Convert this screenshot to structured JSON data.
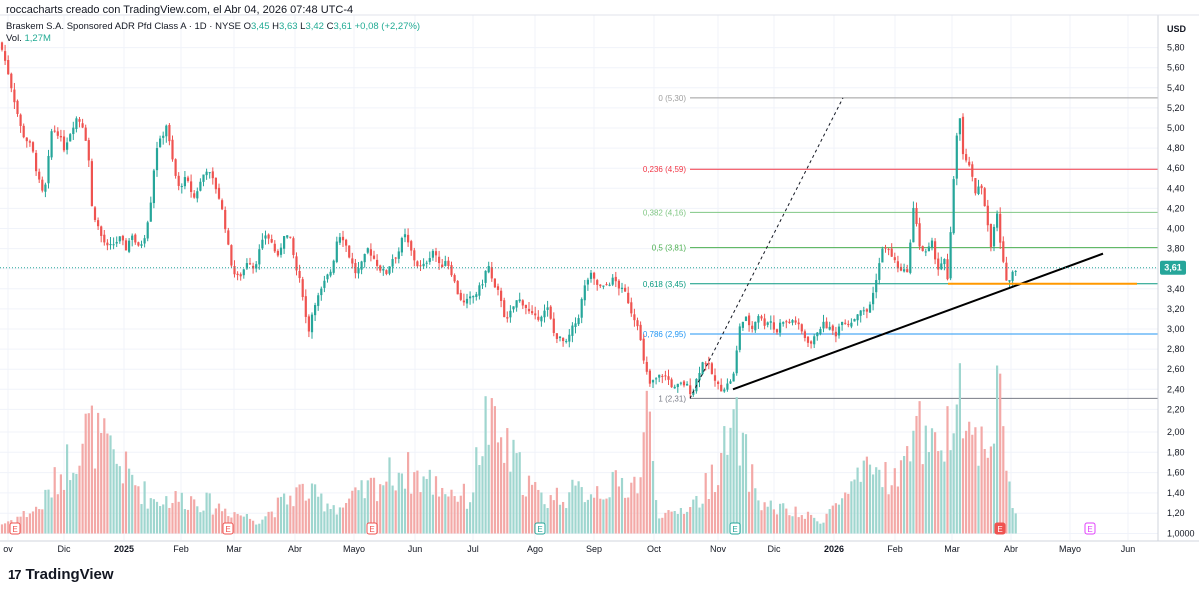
{
  "header": {
    "caption": "roccacharts creado con TradingView.com, el Abr 04, 2026 07:48 UTC-4"
  },
  "legend": {
    "symbol": "Braskem S.A. Sponsored ADR Pfd Class A · 1D · NYSE",
    "open_label": "O",
    "open": "3,45",
    "high_label": "H",
    "high": "3,63",
    "low_label": "L",
    "low": "3,42",
    "close_label": "C",
    "close": "3,61",
    "change": "+0,08 (+2,27%)",
    "vol_label": "Vol.",
    "vol": "1,27M"
  },
  "brand": {
    "name": "TradingView",
    "logo_text": "17"
  },
  "colors": {
    "up": "#26a69a",
    "down": "#ef5350",
    "up_vol": "#9fd6cf",
    "down_vol": "#f3a9a7",
    "axis_text": "#131722",
    "grid": "#f0f3fa"
  },
  "chart_data": {
    "type": "candlestick",
    "currency": "USD",
    "last_price": "3,61",
    "x_axis_labels": [
      "ov",
      "Dic",
      "2025",
      "Feb",
      "Mar",
      "Abr",
      "Mayo",
      "Jun",
      "Jul",
      "Ago",
      "Sep",
      "Oct",
      "Nov",
      "Dic",
      "2026",
      "Feb",
      "Mar",
      "Abr",
      "Mayo",
      "Jun"
    ],
    "y_ticks": [
      5.8,
      5.6,
      5.4,
      5.2,
      5.0,
      4.8,
      4.6,
      4.4,
      4.2,
      4.0,
      3.8,
      3.6,
      3.4,
      3.2,
      3.0,
      2.8,
      2.6,
      2.4,
      2.2,
      2.0,
      1.8,
      1.6,
      1.4,
      1.2,
      1.0
    ],
    "y_tick_labels": [
      "5,80",
      "5,60",
      "5,40",
      "5,20",
      "5,00",
      "4,80",
      "4,60",
      "4,40",
      "4,20",
      "4,00",
      "3,80",
      "3,60",
      "3,40",
      "3,20",
      "3,00",
      "2,80",
      "2,60",
      "2,40",
      "2,20",
      "2,00",
      "1,80",
      "1,60",
      "1,40",
      "1,20",
      "1,0000"
    ],
    "price_path": [
      [
        0,
        5.85
      ],
      [
        7,
        5.6
      ],
      [
        15,
        5.25
      ],
      [
        22,
        4.95
      ],
      [
        32,
        4.8
      ],
      [
        38,
        4.5
      ],
      [
        44,
        4.3
      ],
      [
        52,
        5.0
      ],
      [
        58,
        4.95
      ],
      [
        64,
        4.8
      ],
      [
        70,
        4.95
      ],
      [
        76,
        5.1
      ],
      [
        82,
        5.05
      ],
      [
        88,
        4.8
      ],
      [
        92,
        4.2
      ],
      [
        97,
        4.05
      ],
      [
        102,
        3.9
      ],
      [
        108,
        3.8
      ],
      [
        114,
        3.85
      ],
      [
        120,
        3.9
      ],
      [
        126,
        3.8
      ],
      [
        132,
        3.95
      ],
      [
        138,
        3.8
      ],
      [
        144,
        3.9
      ],
      [
        150,
        4.2
      ],
      [
        156,
        4.8
      ],
      [
        162,
        4.9
      ],
      [
        166,
        5.05
      ],
      [
        172,
        4.7
      ],
      [
        178,
        4.4
      ],
      [
        186,
        4.5
      ],
      [
        194,
        4.3
      ],
      [
        200,
        4.45
      ],
      [
        206,
        4.6
      ],
      [
        212,
        4.5
      ],
      [
        218,
        4.35
      ],
      [
        224,
        4.1
      ],
      [
        230,
        3.7
      ],
      [
        236,
        3.5
      ],
      [
        242,
        3.55
      ],
      [
        248,
        3.7
      ],
      [
        254,
        3.6
      ],
      [
        260,
        3.8
      ],
      [
        266,
        3.95
      ],
      [
        272,
        3.85
      ],
      [
        278,
        3.7
      ],
      [
        284,
        3.95
      ],
      [
        290,
        3.9
      ],
      [
        296,
        3.6
      ],
      [
        302,
        3.4
      ],
      [
        308,
        2.95
      ],
      [
        314,
        3.25
      ],
      [
        320,
        3.35
      ],
      [
        326,
        3.5
      ],
      [
        332,
        3.6
      ],
      [
        338,
        3.95
      ],
      [
        344,
        3.9
      ],
      [
        350,
        3.7
      ],
      [
        356,
        3.55
      ],
      [
        362,
        3.65
      ],
      [
        368,
        3.8
      ],
      [
        374,
        3.7
      ],
      [
        380,
        3.6
      ],
      [
        386,
        3.55
      ],
      [
        392,
        3.7
      ],
      [
        398,
        3.75
      ],
      [
        404,
        3.95
      ],
      [
        410,
        3.8
      ],
      [
        416,
        3.65
      ],
      [
        422,
        3.6
      ],
      [
        428,
        3.7
      ],
      [
        434,
        3.8
      ],
      [
        440,
        3.6
      ],
      [
        446,
        3.7
      ],
      [
        452,
        3.55
      ],
      [
        458,
        3.35
      ],
      [
        464,
        3.25
      ],
      [
        470,
        3.3
      ],
      [
        476,
        3.35
      ],
      [
        482,
        3.45
      ],
      [
        488,
        3.65
      ],
      [
        494,
        3.4
      ],
      [
        500,
        3.35
      ],
      [
        506,
        3.05
      ],
      [
        512,
        3.2
      ],
      [
        518,
        3.3
      ],
      [
        524,
        3.25
      ],
      [
        530,
        3.15
      ],
      [
        536,
        3.1
      ],
      [
        542,
        3.15
      ],
      [
        548,
        3.2
      ],
      [
        554,
        2.95
      ],
      [
        560,
        2.9
      ],
      [
        566,
        2.85
      ],
      [
        572,
        3.0
      ],
      [
        578,
        3.1
      ],
      [
        584,
        3.4
      ],
      [
        590,
        3.55
      ],
      [
        596,
        3.45
      ],
      [
        602,
        3.4
      ],
      [
        608,
        3.45
      ],
      [
        614,
        3.5
      ],
      [
        620,
        3.4
      ],
      [
        626,
        3.35
      ],
      [
        632,
        3.15
      ],
      [
        638,
        3.05
      ],
      [
        644,
        2.65
      ],
      [
        650,
        2.45
      ],
      [
        656,
        2.5
      ],
      [
        662,
        2.55
      ],
      [
        668,
        2.5
      ],
      [
        674,
        2.4
      ],
      [
        680,
        2.45
      ],
      [
        686,
        2.45
      ],
      [
        692,
        2.35
      ],
      [
        698,
        2.55
      ],
      [
        704,
        2.7
      ],
      [
        710,
        2.6
      ],
      [
        716,
        2.45
      ],
      [
        722,
        2.4
      ],
      [
        728,
        2.45
      ],
      [
        734,
        2.55
      ],
      [
        740,
        3.05
      ],
      [
        746,
        3.1
      ],
      [
        752,
        3.0
      ],
      [
        758,
        3.15
      ],
      [
        764,
        3.05
      ],
      [
        770,
        3.1
      ],
      [
        776,
        2.95
      ],
      [
        782,
        3.1
      ],
      [
        788,
        3.05
      ],
      [
        794,
        3.1
      ],
      [
        800,
        3.0
      ],
      [
        806,
        2.9
      ],
      [
        812,
        2.85
      ],
      [
        818,
        3.0
      ],
      [
        824,
        3.05
      ],
      [
        830,
        3.0
      ],
      [
        836,
        2.95
      ],
      [
        842,
        3.1
      ],
      [
        848,
        3.05
      ],
      [
        854,
        3.1
      ],
      [
        860,
        3.2
      ],
      [
        866,
        3.15
      ],
      [
        872,
        3.3
      ],
      [
        878,
        3.6
      ],
      [
        884,
        3.85
      ],
      [
        890,
        3.75
      ],
      [
        896,
        3.65
      ],
      [
        902,
        3.55
      ],
      [
        908,
        3.6
      ],
      [
        914,
        4.25
      ],
      [
        920,
        3.8
      ],
      [
        926,
        3.75
      ],
      [
        932,
        3.85
      ],
      [
        938,
        3.6
      ],
      [
        944,
        3.7
      ],
      [
        948,
        3.45
      ],
      [
        952,
        4.2
      ],
      [
        956,
        4.9
      ],
      [
        960,
        5.1
      ],
      [
        964,
        4.6
      ],
      [
        968,
        4.7
      ],
      [
        972,
        4.5
      ],
      [
        976,
        4.3
      ],
      [
        980,
        4.5
      ],
      [
        984,
        4.3
      ],
      [
        988,
        4.0
      ],
      [
        992,
        3.75
      ],
      [
        996,
        4.25
      ],
      [
        1000,
        3.85
      ],
      [
        1004,
        3.6
      ],
      [
        1008,
        3.45
      ],
      [
        1012,
        3.55
      ],
      [
        1016,
        3.61
      ]
    ],
    "volume_path": [
      [
        0,
        0.25
      ],
      [
        40,
        0.45
      ],
      [
        88,
        1.37
      ],
      [
        150,
        0.55
      ],
      [
        196,
        0.55
      ],
      [
        258,
        0.3
      ],
      [
        300,
        0.65
      ],
      [
        340,
        0.45
      ],
      [
        400,
        0.9
      ],
      [
        470,
        0.55
      ],
      [
        485,
        1.45
      ],
      [
        540,
        0.55
      ],
      [
        565,
        0.6
      ],
      [
        640,
        0.75
      ],
      [
        648,
        1.65
      ],
      [
        660,
        0.3
      ],
      [
        700,
        0.55
      ],
      [
        736,
        1.37
      ],
      [
        760,
        0.5
      ],
      [
        820,
        0.3
      ],
      [
        860,
        0.75
      ],
      [
        875,
        0.9
      ],
      [
        900,
        0.75
      ],
      [
        913,
        1.5
      ],
      [
        942,
        0.9
      ],
      [
        952,
        1.6
      ],
      [
        957,
        2.25
      ],
      [
        962,
        1.7
      ],
      [
        972,
        1.2
      ],
      [
        992,
        1.35
      ],
      [
        1000,
        1.9
      ],
      [
        1008,
        0.75
      ],
      [
        1016,
        0.35
      ]
    ],
    "fibonacci": [
      {
        "label": "0 (5,30)",
        "value": 5.3,
        "color": "#9e9e9e"
      },
      {
        "label": "0,236 (4,59)",
        "value": 4.59,
        "color": "#f23645"
      },
      {
        "label": "0,382 (4,16)",
        "value": 4.16,
        "color": "#81c784"
      },
      {
        "label": "0,5 (3,81)",
        "value": 3.81,
        "color": "#4caf50"
      },
      {
        "label": "0,618 (3,45)",
        "value": 3.45,
        "color": "#089981"
      },
      {
        "label": "0,786 (2,95)",
        "value": 2.95,
        "color": "#2196f3"
      },
      {
        "label": "1 (2,31)",
        "value": 2.31,
        "color": "#787b86"
      }
    ],
    "earnings_markers": [
      "E",
      "E",
      "E",
      "E",
      "E",
      "E",
      "E",
      "E"
    ]
  }
}
